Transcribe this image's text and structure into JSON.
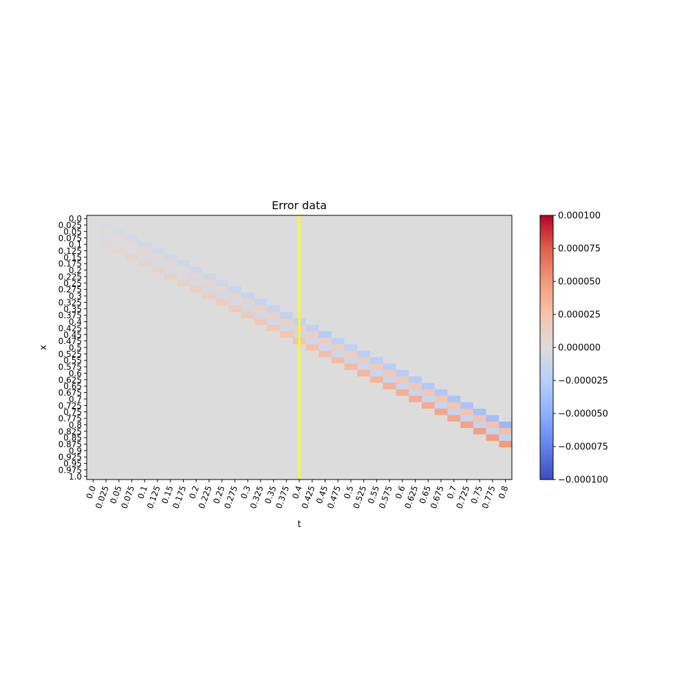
{
  "chart_data": {
    "type": "heatmap",
    "title": "Error data",
    "xlabel": "t",
    "ylabel": "x",
    "x_ticks": [
      "0.0",
      "0.025",
      "0.05",
      "0.075",
      "0.1",
      "0.125",
      "0.15",
      "0.175",
      "0.2",
      "0.225",
      "0.25",
      "0.275",
      "0.3",
      "0.325",
      "0.35",
      "0.375",
      "0.4",
      "0.425",
      "0.45",
      "0.475",
      "0.5",
      "0.525",
      "0.55",
      "0.575",
      "0.6",
      "0.625",
      "0.65",
      "0.675",
      "0.7",
      "0.725",
      "0.75",
      "0.775",
      "0.8"
    ],
    "y_ticks": [
      "0.0",
      "0.025",
      "0.05",
      "0.075",
      "0.1",
      "0.125",
      "0.15",
      "0.175",
      "0.2",
      "0.225",
      "0.25",
      "0.275",
      "0.3",
      "0.325",
      "0.35",
      "0.375",
      "0.4",
      "0.425",
      "0.45",
      "0.475",
      "0.5",
      "0.525",
      "0.55",
      "0.575",
      "0.6",
      "0.625",
      "0.65",
      "0.675",
      "0.7",
      "0.725",
      "0.75",
      "0.775",
      "0.8",
      "0.825",
      "0.85",
      "0.875",
      "0.9",
      "0.925",
      "0.95",
      "0.975",
      "1.0"
    ],
    "colormap": "coolwarm",
    "vmin": -0.0001,
    "vmax": 0.0001,
    "colorbar_ticks": [
      "0.000100",
      "0.000075",
      "0.000050",
      "0.000025",
      "0.000000",
      "−0.000025",
      "−0.000050",
      "−0.000075",
      "−0.000100"
    ],
    "colorbar_values": [
      0.0001,
      7.5e-05,
      5e-05,
      2.5e-05,
      0,
      -2.5e-05,
      -5e-05,
      -7.5e-05,
      -0.0001
    ],
    "highlight_t": "0.4",
    "highlight_color": "#f5f542",
    "background_value": 0,
    "bands": [
      {
        "name": "negative-band",
        "offset": 0,
        "values": [
          -4e-06,
          -5e-06,
          -6e-06,
          -7e-06,
          -8e-06,
          -9e-06,
          -1e-05,
          -1.1e-05,
          -1.2e-05,
          -1.3e-05,
          -1.4e-05,
          -1.5e-05,
          -1.6e-05,
          -1.7e-05,
          -1.8e-05,
          -1.9e-05,
          -2e-05,
          -2.8e-05,
          -2.2e-05,
          -2.3e-05,
          -2.4e-05,
          -2.5e-05,
          -2.6e-05,
          -2.7e-05,
          -2.9e-05,
          -3e-05,
          -3.1e-05,
          -3.3e-05,
          -3.4e-05,
          -3.6e-05,
          -3.8e-05,
          -4.2e-05
        ]
      },
      {
        "name": "faint-positive-band",
        "offset": 1,
        "values": [
          2e-06,
          3e-06,
          3e-06,
          4e-06,
          4e-06,
          5e-06,
          5e-06,
          6e-06,
          6e-06,
          7e-06,
          8e-06,
          8e-06,
          9e-06,
          1e-05,
          1.1e-05,
          1.2e-05,
          1.3e-05,
          1.4e-05,
          1.5e-05,
          1.6e-05,
          1.7e-05,
          1.8e-05,
          1.9e-05,
          2e-05,
          2.1e-05,
          2.2e-05,
          2.3e-05,
          2.4e-05,
          2.5e-05,
          2.6e-05,
          2.7e-05,
          2.8e-05
        ]
      },
      {
        "name": "faint-negative-band",
        "offset": 2,
        "values": [
          -2e-06,
          -3e-06,
          -3e-06,
          -4e-06,
          -4e-06,
          -5e-06,
          -5e-06,
          -6e-06,
          -6e-06,
          -7e-06,
          -7e-06,
          -8e-06,
          -8e-06,
          -9e-06,
          -9e-06,
          -1e-05,
          -1e-05,
          -1.1e-05,
          -1.1e-05,
          -1.2e-05,
          -1.2e-05,
          -1.3e-05,
          -1.3e-05,
          -1.4e-05,
          -1.4e-05,
          -1.5e-05,
          -1.5e-05,
          -1.6e-05,
          -1.6e-05,
          -1.7e-05,
          -1.7e-05,
          -1.8e-05
        ]
      },
      {
        "name": "positive-band",
        "offset": 3,
        "values": [
          4e-06,
          5e-06,
          6e-06,
          8e-06,
          9e-06,
          1.1e-05,
          1.2e-05,
          1.3e-05,
          1.5e-05,
          1.6e-05,
          1.8e-05,
          1.9e-05,
          2.1e-05,
          2.2e-05,
          2.4e-05,
          2.5e-05,
          2.7e-05,
          2.8e-05,
          3e-05,
          3.1e-05,
          3.3e-05,
          3.4e-05,
          3.6e-05,
          3.7e-05,
          3.9e-05,
          4e-05,
          4.2e-05,
          4.3e-05,
          4.5e-05,
          4.6e-05,
          4.8e-05,
          5e-05
        ]
      }
    ]
  }
}
